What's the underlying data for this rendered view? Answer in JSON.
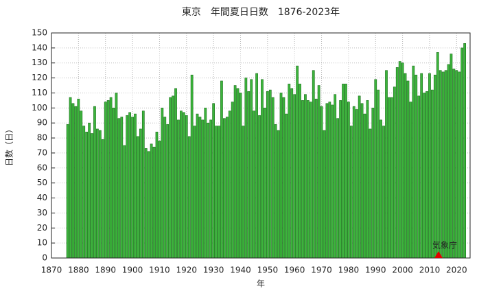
{
  "chart_data": {
    "type": "bar",
    "title": "東京　年間夏日日数　1876-2023年",
    "ylabel": "日数（日）",
    "xlabel": "年",
    "annotation": "気象庁",
    "color": "#3cb43c",
    "edgecolor": "#1c6e1c",
    "grid": true,
    "xlim": [
      1870,
      2025
    ],
    "ylim": [
      0,
      150
    ],
    "xticks": [
      1870,
      1880,
      1890,
      1900,
      1910,
      1920,
      1930,
      1940,
      1950,
      1960,
      1970,
      1980,
      1990,
      2000,
      2010,
      2020
    ],
    "yticks": [
      0,
      10,
      20,
      30,
      40,
      50,
      60,
      70,
      80,
      90,
      100,
      110,
      120,
      130,
      140,
      150
    ],
    "x": [
      1876,
      1877,
      1878,
      1879,
      1880,
      1881,
      1882,
      1883,
      1884,
      1885,
      1886,
      1887,
      1888,
      1889,
      1890,
      1891,
      1892,
      1893,
      1894,
      1895,
      1896,
      1897,
      1898,
      1899,
      1900,
      1901,
      1902,
      1903,
      1904,
      1905,
      1906,
      1907,
      1908,
      1909,
      1910,
      1911,
      1912,
      1913,
      1914,
      1915,
      1916,
      1917,
      1918,
      1919,
      1920,
      1921,
      1922,
      1923,
      1924,
      1925,
      1926,
      1927,
      1928,
      1929,
      1930,
      1931,
      1932,
      1933,
      1934,
      1935,
      1936,
      1937,
      1938,
      1939,
      1940,
      1941,
      1942,
      1943,
      1944,
      1945,
      1946,
      1947,
      1948,
      1949,
      1950,
      1951,
      1952,
      1953,
      1954,
      1955,
      1956,
      1957,
      1958,
      1959,
      1960,
      1961,
      1962,
      1963,
      1964,
      1965,
      1966,
      1967,
      1968,
      1969,
      1970,
      1971,
      1972,
      1973,
      1974,
      1975,
      1976,
      1977,
      1978,
      1979,
      1980,
      1981,
      1982,
      1983,
      1984,
      1985,
      1986,
      1987,
      1988,
      1989,
      1990,
      1991,
      1992,
      1993,
      1994,
      1995,
      1996,
      1997,
      1998,
      1999,
      2000,
      2001,
      2002,
      2003,
      2004,
      2005,
      2006,
      2007,
      2008,
      2009,
      2010,
      2011,
      2012,
      2013,
      2014,
      2015,
      2016,
      2017,
      2018,
      2019,
      2020,
      2021,
      2022,
      2023
    ],
    "values": [
      89,
      107,
      103,
      101,
      106,
      98,
      88,
      84,
      90,
      83,
      101,
      86,
      85,
      79,
      104,
      105,
      107,
      100,
      110,
      93,
      94,
      75,
      95,
      97,
      94,
      96,
      81,
      86,
      98,
      73,
      71,
      76,
      74,
      84,
      78,
      100,
      94,
      89,
      107,
      108,
      113,
      92,
      98,
      97,
      95,
      81,
      122,
      88,
      96,
      94,
      92,
      100,
      90,
      92,
      103,
      88,
      88,
      118,
      93,
      94,
      98,
      104,
      115,
      113,
      110,
      88,
      120,
      111,
      119,
      98,
      123,
      95,
      119,
      100,
      111,
      112,
      107,
      89,
      85,
      110,
      107,
      96,
      116,
      113,
      109,
      128,
      116,
      105,
      109,
      105,
      104,
      125,
      106,
      115,
      101,
      85,
      103,
      104,
      102,
      109,
      93,
      105,
      116,
      116,
      104,
      88,
      101,
      99,
      108,
      103,
      96,
      105,
      86,
      100,
      119,
      112,
      92,
      88,
      125,
      107,
      107,
      114,
      127,
      131,
      130,
      123,
      118,
      104,
      128,
      122,
      108,
      123,
      110,
      111,
      123,
      112,
      122,
      137,
      125,
      124,
      125,
      129,
      136,
      126,
      125,
      124,
      140,
      143
    ]
  }
}
